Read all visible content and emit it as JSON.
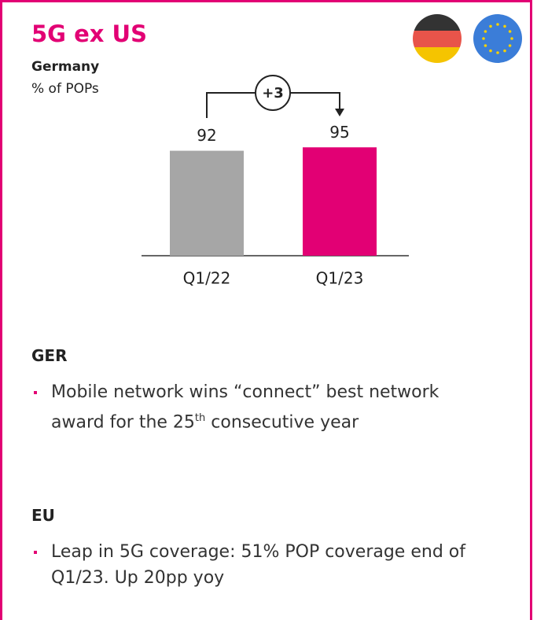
{
  "title": "5G ex US",
  "chart_data": {
    "type": "bar",
    "title": "Germany",
    "subtitle": "% of POPs",
    "categories": [
      "Q1/22",
      "Q1/23"
    ],
    "values": [
      92,
      95
    ],
    "colors": [
      "#a6a6a6",
      "#e20074"
    ],
    "annotation": "+3"
  },
  "sections": [
    {
      "heading": "GER",
      "bullets": [
        [
          "Mobile network wins “connect” best network award for the 25",
          "th",
          " consecutive year"
        ]
      ]
    },
    {
      "heading": "EU",
      "bullets": [
        [
          "Leap in 5G coverage: 51%  POP coverage end of Q1/23. Up 20pp yoy"
        ]
      ]
    }
  ]
}
